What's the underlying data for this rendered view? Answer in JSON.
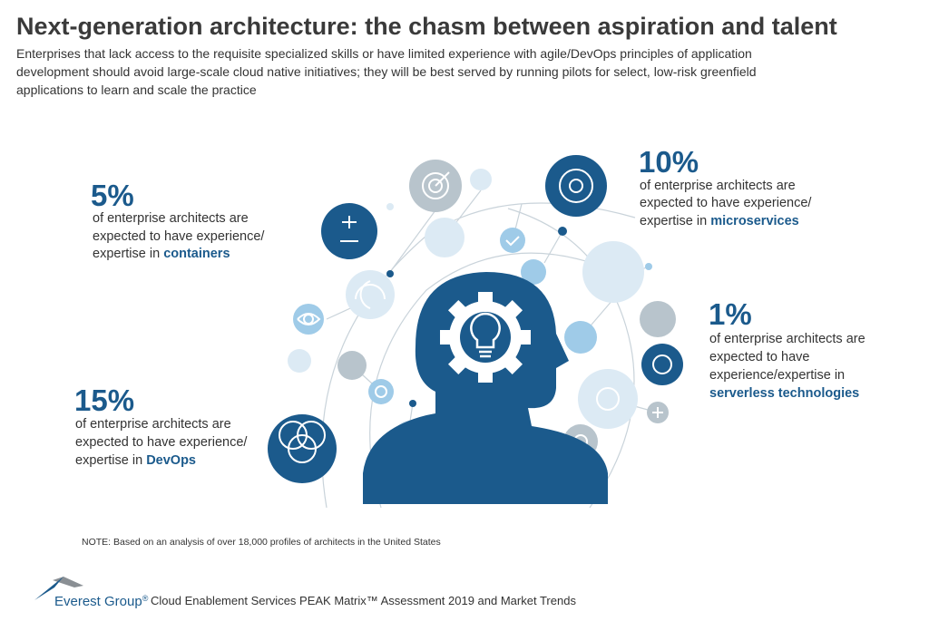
{
  "header": {
    "title": "Next-generation architecture: the chasm between aspiration and talent",
    "subtitle_lines": [
      "Enterprises that lack access to the requisite specialized skills or have limited experience with agile/DevOps principles of application",
      "development should avoid large-scale cloud native initiatives; they will be best served by running pilots for select, low-risk greenfield",
      "applications to learn and scale the practice"
    ]
  },
  "stats": [
    {
      "percent": "5%",
      "lines": [
        "of enterprise architects are",
        "expected to have experience/",
        "expertise in"
      ],
      "highlight": "containers"
    },
    {
      "percent": "10%",
      "lines": [
        "of enterprise architects are",
        "expected to have experience/",
        "expertise in"
      ],
      "highlight": "microservices"
    },
    {
      "percent": "1%",
      "lines": [
        "of enterprise architects are",
        "expected to have",
        "experience/expertise in"
      ],
      "highlight": "serverless technologies"
    },
    {
      "percent": "15%",
      "lines": [
        "of enterprise architects are",
        "expected to have experience/",
        "expertise in"
      ],
      "highlight": "DevOps"
    }
  ],
  "note": "NOTE: Based on an analysis of over 18,000 profiles of architects in the United States",
  "footer": {
    "brand": "Everest Group",
    "mark": "®",
    "source": "Cloud Enablement Services PEAK Matrix™ Assessment 2019 and Market Trends"
  }
}
